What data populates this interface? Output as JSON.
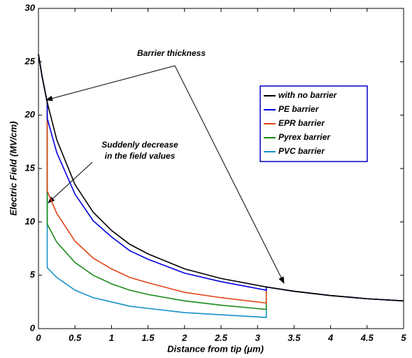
{
  "chart_data": {
    "type": "line",
    "xlabel": "Distance from tip (μm)",
    "ylabel": "Electric Field (MV/cm)",
    "annotations": [
      "Barrier thickness",
      "Suddenly decrease",
      "in the field values"
    ],
    "x": [
      0,
      0.05,
      0.12,
      0.12,
      0.25,
      0.5,
      0.75,
      1,
      1.25,
      1.5,
      2,
      2.5,
      3.12,
      3.12,
      3.5,
      4,
      4.5,
      5
    ],
    "series": [
      {
        "name": "with no barrier",
        "color": "#000000",
        "values": [
          25.7,
          23.6,
          21.2,
          21.2,
          17.7,
          13.5,
          10.9,
          9.2,
          7.9,
          7.0,
          5.6,
          4.7,
          3.9,
          3.9,
          3.5,
          3.1,
          2.8,
          2.6
        ]
      },
      {
        "name": "PE barrier",
        "color": "#0000e0",
        "values": [
          25.7,
          23.6,
          21.2,
          19.7,
          16.5,
          12.6,
          10.1,
          8.6,
          7.3,
          6.5,
          5.2,
          4.4,
          3.6,
          3.9,
          3.5,
          3.1,
          2.8,
          2.6
        ]
      },
      {
        "name": "EPR barrier",
        "color": "#e04418",
        "values": [
          25.7,
          23.6,
          21.2,
          12.9,
          10.8,
          8.2,
          6.6,
          5.6,
          4.8,
          4.3,
          3.4,
          2.9,
          2.4,
          3.9,
          3.5,
          3.1,
          2.8,
          2.6
        ]
      },
      {
        "name": "Pyrex barrier",
        "color": "#1a8a1a",
        "values": [
          25.7,
          23.6,
          21.2,
          9.8,
          8.1,
          6.2,
          5.0,
          4.2,
          3.6,
          3.2,
          2.6,
          2.2,
          1.8,
          3.9,
          3.5,
          3.1,
          2.8,
          2.6
        ]
      },
      {
        "name": "PVC barrier",
        "color": "#1a90c8",
        "values": [
          25.7,
          23.6,
          21.2,
          5.7,
          4.8,
          3.6,
          2.9,
          2.5,
          2.1,
          1.9,
          1.5,
          1.3,
          1.05,
          3.9,
          3.5,
          3.1,
          2.8,
          2.6
        ]
      }
    ],
    "xlim": [
      0,
      5
    ],
    "xticks": [
      0,
      0.5,
      1,
      1.5,
      2,
      2.5,
      3,
      3.5,
      4,
      4.5,
      5
    ],
    "ylim": [
      0,
      30
    ],
    "yticks": [
      0,
      5,
      10,
      15,
      20,
      25,
      30
    ],
    "legend": "upper right",
    "grid": false
  }
}
